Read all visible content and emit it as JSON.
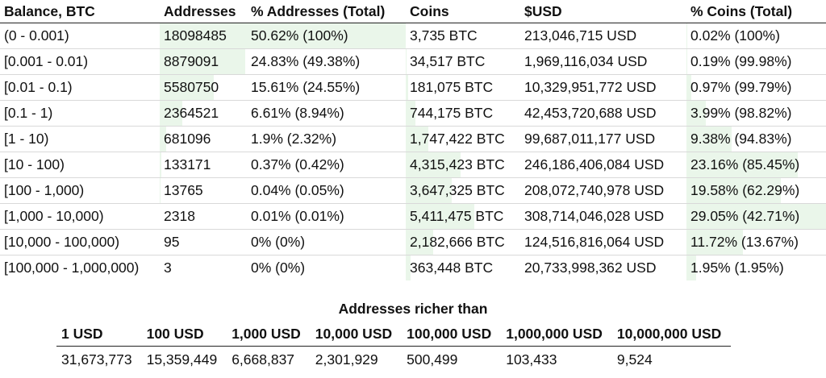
{
  "distribution": {
    "headers": [
      "Balance, BTC",
      "Addresses",
      "% Addresses (Total)",
      "Coins",
      "$USD",
      "% Coins (Total)"
    ],
    "rows": [
      {
        "range": "(0 - 0.001)",
        "addresses": "18098485",
        "pct_addresses": "50.62% (100%)",
        "coins": "3,735 BTC",
        "usd": "213,046,715 USD",
        "pct_coins": "0.02% (100%)",
        "addr_share": 0.5062,
        "coin_share": 0.0002
      },
      {
        "range": "[0.001 - 0.01)",
        "addresses": "8879091",
        "pct_addresses": "24.83% (49.38%)",
        "coins": "34,517 BTC",
        "usd": "1,969,116,034 USD",
        "pct_coins": "0.19% (99.98%)",
        "addr_share": 0.2483,
        "coin_share": 0.0019
      },
      {
        "range": "[0.01 - 0.1)",
        "addresses": "5580750",
        "pct_addresses": "15.61% (24.55%)",
        "coins": "181,075 BTC",
        "usd": "10,329,951,772 USD",
        "pct_coins": "0.97% (99.79%)",
        "addr_share": 0.1561,
        "coin_share": 0.0097
      },
      {
        "range": "[0.1 - 1)",
        "addresses": "2364521",
        "pct_addresses": "6.61% (8.94%)",
        "coins": "744,175 BTC",
        "usd": "42,453,720,688 USD",
        "pct_coins": "3.99% (98.82%)",
        "addr_share": 0.0661,
        "coin_share": 0.0399
      },
      {
        "range": "[1 - 10)",
        "addresses": "681096",
        "pct_addresses": "1.9% (2.32%)",
        "coins": "1,747,422 BTC",
        "usd": "99,687,011,177 USD",
        "pct_coins": "9.38% (94.83%)",
        "addr_share": 0.019,
        "coin_share": 0.0938
      },
      {
        "range": "[10 - 100)",
        "addresses": "133171",
        "pct_addresses": "0.37% (0.42%)",
        "coins": "4,315,423 BTC",
        "usd": "246,186,406,084 USD",
        "pct_coins": "23.16% (85.45%)",
        "addr_share": 0.0037,
        "coin_share": 0.2316
      },
      {
        "range": "[100 - 1,000)",
        "addresses": "13765",
        "pct_addresses": "0.04% (0.05%)",
        "coins": "3,647,325 BTC",
        "usd": "208,072,740,978 USD",
        "pct_coins": "19.58% (62.29%)",
        "addr_share": 0.0004,
        "coin_share": 0.1958
      },
      {
        "range": "[1,000 - 10,000)",
        "addresses": "2318",
        "pct_addresses": "0.01% (0.01%)",
        "coins": "5,411,475 BTC",
        "usd": "308,714,046,028 USD",
        "pct_coins": "29.05% (42.71%)",
        "addr_share": 0.0001,
        "coin_share": 0.2905
      },
      {
        "range": "[10,000 - 100,000)",
        "addresses": "95",
        "pct_addresses": "0% (0%)",
        "coins": "2,182,666 BTC",
        "usd": "124,516,816,064 USD",
        "pct_coins": "11.72% (13.67%)",
        "addr_share": 0,
        "coin_share": 0.1172
      },
      {
        "range": "[100,000 - 1,000,000)",
        "addresses": "3",
        "pct_addresses": "0% (0%)",
        "coins": "363,448 BTC",
        "usd": "20,733,998,362 USD",
        "pct_coins": "1.95% (1.95%)",
        "addr_share": 0,
        "coin_share": 0.0195
      }
    ]
  },
  "richer_than": {
    "title": "Addresses richer than",
    "headers": [
      "1 USD",
      "100 USD",
      "1,000 USD",
      "10,000 USD",
      "100,000 USD",
      "1,000,000 USD",
      "10,000,000 USD"
    ],
    "values": [
      "31,673,773",
      "15,359,449",
      "6,668,837",
      "2,301,929",
      "500,499",
      "103,433",
      "9,524"
    ]
  },
  "colors": {
    "bar_fill": "#eaf6ea",
    "header_rule": "#222222",
    "row_rule": "#d9d9d9"
  }
}
